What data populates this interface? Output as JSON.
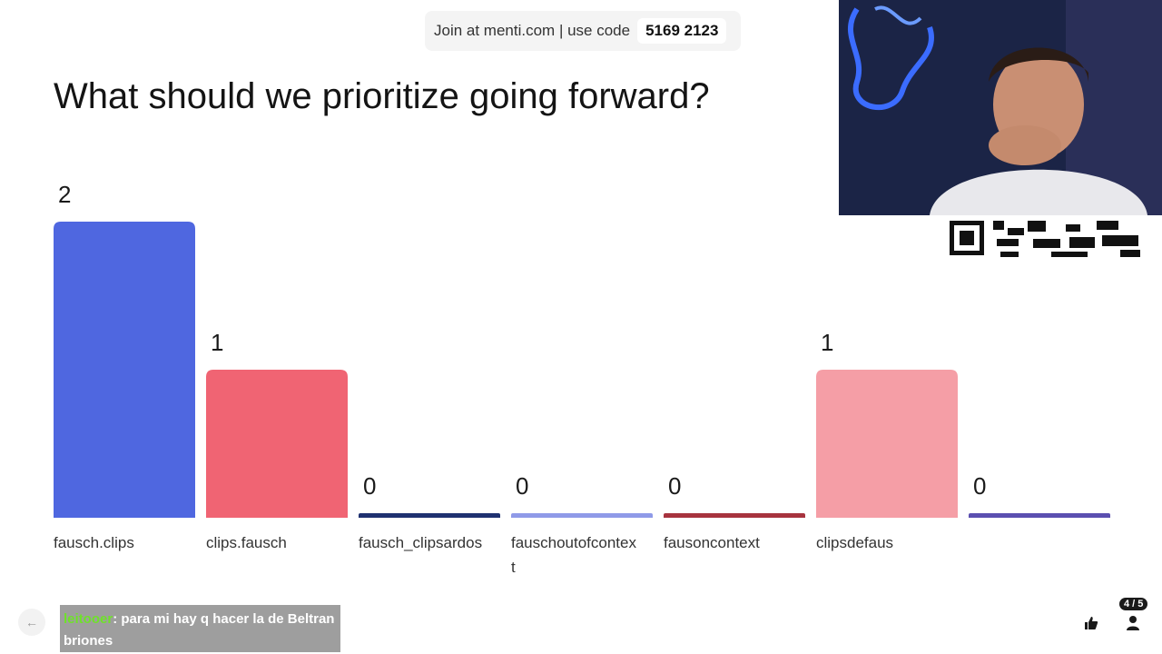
{
  "join": {
    "text": "Join at menti.com | use code",
    "code": "5169 2123"
  },
  "question": "What should we prioritize going forward?",
  "chart_data": {
    "type": "bar",
    "title": "What should we prioritize going forward?",
    "categories": [
      "fausch.clips",
      "clips.fausch",
      "fausch_clipsardos",
      "fauschoutofcontext",
      "fausoncontext",
      "clipsdefaus",
      ""
    ],
    "category_lines": [
      [
        "fausch.clips"
      ],
      [
        "clips.fausch"
      ],
      [
        "fausch_clipsardos"
      ],
      [
        "fauschoutofcontex",
        "t"
      ],
      [
        "fausoncontext"
      ],
      [
        "clipsdefaus"
      ],
      [
        ""
      ]
    ],
    "values": [
      2,
      1,
      0,
      0,
      0,
      1,
      0
    ],
    "colors": [
      "#4f67e0",
      "#f06473",
      "#1f3170",
      "#8f9ae8",
      "#a7333e",
      "#f59ea6",
      "#5b4fb0"
    ],
    "ylim": [
      0,
      2
    ],
    "grid": false,
    "xlabel": "",
    "ylabel": ""
  },
  "chat": {
    "user": "leitooer",
    "message": ": para mi hay q hacer la de Beltran briones"
  },
  "controls": {
    "slide_counter": "4 / 5",
    "back_icon": "arrow-left-icon",
    "react_icon": "thumbs-up-icon",
    "people_icon": "person-icon"
  }
}
